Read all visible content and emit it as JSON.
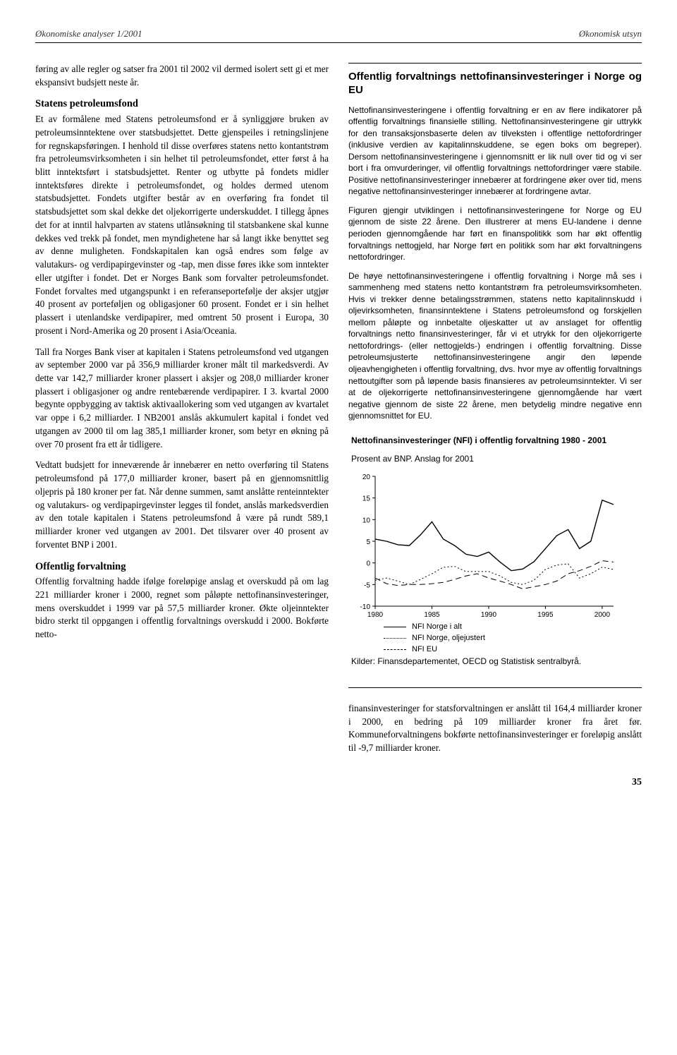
{
  "header": {
    "left": "Økonomiske analyser 1/2001",
    "right": "Økonomisk utsyn"
  },
  "left": {
    "p1": "føring av alle regler og satser fra 2001 til 2002 vil dermed isolert sett gi et mer ekspansivt budsjett neste år.",
    "h1": "Statens petroleumsfond",
    "p2": "Et av formålene med Statens petroleumsfond er å synliggjøre bruken av petroleumsinntektene over statsbudsjettet. Dette gjenspeiles i retningslinjene for regnskapsføringen. I henhold til disse overføres statens netto kontantstrøm fra petroleumsvirksomheten i sin helhet til petroleumsfondet, etter først å ha blitt inntektsført i statsbudsjettet. Renter og utbytte på fondets midler inntektsføres direkte i petroleumsfondet, og holdes dermed utenom statsbudsjettet. Fondets utgifter består av en overføring fra fondet til statsbudsjettet som skal dekke det oljekorrigerte underskuddet. I tillegg åpnes det for at inntil halvparten av statens utlånsøkning til statsbankene skal kunne dekkes ved trekk på fondet, men myndighetene har så langt ikke benyttet seg av denne muligheten. Fondskapitalen kan også endres som følge av valutakurs- og verdipapirgevinster og -tap, men disse føres ikke som inntekter eller utgifter i fondet. Det er Norges Bank som forvalter petroleumsfondet. Fondet forvaltes med utgangspunkt i en referanseportefølje der aksjer utgjør 40 prosent av porteføljen og obligasjoner 60 prosent. Fondet er i sin helhet plassert i utenlandske verdipapirer, med omtrent 50 prosent i Europa, 30 prosent i Nord-Amerika og 20 prosent i Asia/Oceania.",
    "p3": "Tall fra Norges Bank viser at kapitalen i Statens petroleumsfond ved utgangen av september 2000 var på 356,9 milliarder kroner målt til markedsverdi. Av dette var 142,7 milliarder kroner plassert i aksjer og 208,0 milliarder kroner plassert i obligasjoner og andre rentebærende verdipapirer. I 3. kvartal 2000 begynte oppbygging av taktisk aktivaallokering som ved utgangen av kvartalet var oppe i 6,2 milliarder. I NB2001 anslås akkumulert kapital i fondet ved utgangen av 2000 til om lag 385,1 milliarder kroner, som betyr en økning på over 70 prosent fra ett år tidligere.",
    "p4": "Vedtatt budsjett for inneværende år innebærer en netto overføring til Statens petroleumsfond på 177,0 milliarder kroner, basert på en gjennomsnittlig oljepris på 180 kroner per fat. Når denne summen, samt anslåtte renteinntekter og valutakurs- og verdipapirgevinster legges til fondet, anslås markedsverdien av den totale kapitalen i Statens petroleumsfond å være på rundt 589,1 milliarder kroner ved utgangen av 2001. Det tilsvarer over 40 prosent av forventet BNP i 2001.",
    "h2": "Offentlig forvaltning",
    "p5": "Offentlig forvaltning hadde ifølge foreløpige anslag et overskudd på om lag 221 milliarder kroner i 2000, regnet som påløpte nettofinansinvesteringer, mens overskuddet i 1999 var på 57,5 milliarder kroner. Økte oljeinntekter bidro sterkt til oppgangen i offentlig forvaltnings overskudd i 2000. Bokførte netto-"
  },
  "sidebar": {
    "title": "Offentlig forvaltnings nettofinansinvesteringer i Norge og EU",
    "p1": "Nettofinansinvesteringene i offentlig forvaltning er en av flere indikatorer på offentlig forvaltnings finansielle stilling. Nettofinansinvesteringene gir uttrykk for den transaksjonsbaserte delen av tilveksten i offentlige nettofordringer (inklusive verdien av kapitalinnskuddene, se egen boks om begreper). Dersom nettofinansinvesteringene i gjennomsnitt er lik null over tid og vi ser bort i fra omvurderinger, vil offentlig forvaltnings nettofordringer være stabile. Positive nettofinansinvesteringer innebærer at fordringene øker over tid, mens negative nettofinansinvesteringer innebærer at fordringene avtar.",
    "p2": "Figuren gjengir utviklingen i nettofinansinvesteringene for Norge og EU gjennom de siste 22 årene. Den illustrerer at mens EU-landene i denne perioden gjennomgående har ført en finanspolitikk som har økt offentlig forvaltnings nettogjeld, har Norge ført en politikk som har økt forvaltningens nettofordringer.",
    "p3": "De høye nettofinansinvesteringene i offentlig forvaltning i Norge må ses i sammenheng med statens netto kontantstrøm fra petroleumsvirksomheten. Hvis vi trekker denne betalingsstrømmen, statens netto kapitalinnskudd i oljevirksomheten, finansinntektene i Statens petroleumsfond og forskjellen mellom påløpte og innbetalte oljeskatter ut av anslaget for offentlig forvaltnings netto finansinvesteringer, får vi et utrykk for den oljekorrigerte nettofordrings- (eller nettogjelds-) endringen i offentlig forvaltning. Disse petroleumsjusterte nettofinansinvesteringene angir den løpende oljeavhengigheten i offentlig forvaltning, dvs. hvor mye av offentlig forvaltnings nettoutgifter som på løpende basis finansieres av petroleumsinntekter. Vi ser at de oljekorrigerte nettofinansinvesteringene gjennomgående har vært negative gjennom de siste 22 årene, men betydelig mindre negative enn gjennomsnittet for EU."
  },
  "chart": {
    "title": "Nettofinansinvesteringer (NFI) i offentlig forvaltning 1980 - 2001",
    "subtitle": "Prosent av BNP. Anslag for 2001",
    "ylim": [
      -10,
      20
    ],
    "ytick_step": 5,
    "yticks": [
      "20",
      "15",
      "10",
      "5",
      "0",
      "-5",
      "-10"
    ],
    "xlim": [
      1980,
      2001
    ],
    "xticks": [
      "1980",
      "1985",
      "1990",
      "1995",
      "2000"
    ],
    "background_color": "#ffffff",
    "axis_color": "#000000",
    "series": {
      "norge_alt": {
        "label": "NFI Norge i alt",
        "color": "#000000",
        "stroke_width": 1.4,
        "dash": "none",
        "years": [
          1980,
          1981,
          1982,
          1983,
          1984,
          1985,
          1986,
          1987,
          1988,
          1989,
          1990,
          1991,
          1992,
          1993,
          1994,
          1995,
          1996,
          1997,
          1998,
          1999,
          2000,
          2001
        ],
        "values": [
          5.5,
          5.0,
          4.2,
          4.0,
          6.5,
          9.5,
          5.5,
          4.0,
          2.0,
          1.5,
          2.5,
          0.2,
          -1.8,
          -1.4,
          0.3,
          3.3,
          6.3,
          7.7,
          3.3,
          5.0,
          14.5,
          13.5
        ]
      },
      "norge_olje": {
        "label": "NFI Norge, oljejustert",
        "color": "#000000",
        "stroke_width": 1.0,
        "dash": "2,3",
        "years": [
          1980,
          1981,
          1982,
          1983,
          1984,
          1985,
          1986,
          1987,
          1988,
          1989,
          1990,
          1991,
          1992,
          1993,
          1994,
          1995,
          1996,
          1997,
          1998,
          1999,
          2000,
          2001
        ],
        "values": [
          -4.0,
          -3.5,
          -4.2,
          -5.0,
          -3.8,
          -2.5,
          -1.0,
          -0.8,
          -2.0,
          -2.0,
          -2.0,
          -3.0,
          -4.5,
          -5.0,
          -4.0,
          -1.5,
          -0.5,
          -0.2,
          -3.5,
          -2.5,
          -1.0,
          -1.5
        ]
      },
      "eu": {
        "label": "NFI EU",
        "color": "#000000",
        "stroke_width": 1.0,
        "dash": "8,5",
        "years": [
          1980,
          1981,
          1982,
          1983,
          1984,
          1985,
          1986,
          1987,
          1988,
          1989,
          1990,
          1991,
          1992,
          1993,
          1994,
          1995,
          1996,
          1997,
          1998,
          1999,
          2000,
          2001
        ],
        "values": [
          -3.5,
          -4.8,
          -5.2,
          -5.0,
          -5.0,
          -4.8,
          -4.5,
          -3.8,
          -3.0,
          -2.5,
          -3.5,
          -4.2,
          -5.0,
          -6.0,
          -5.5,
          -5.0,
          -4.2,
          -2.5,
          -1.8,
          -0.8,
          0.5,
          0.2
        ]
      }
    },
    "source": "Kilder: Finansdepartementet, OECD og Statistisk sentralbyrå."
  },
  "right_bottom": "finansinvesteringer for statsforvaltningen er anslått til 164,4 milliarder kroner i 2000, en bedring på 109 milliarder kroner fra året før. Kommuneforvaltningens bokførte nettofinansinvesteringer er foreløpig anslått til -9,7 milliarder kroner.",
  "page_number": "35"
}
